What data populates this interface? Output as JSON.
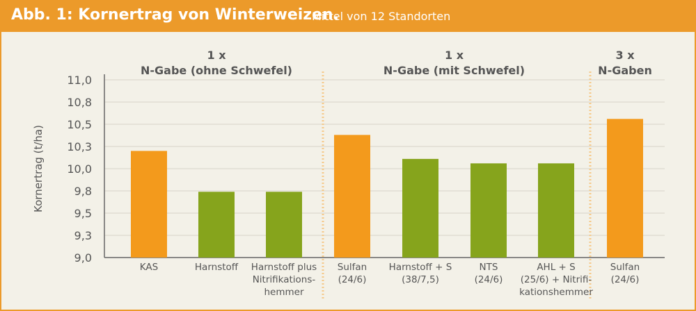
{
  "header": {
    "title": "Abb. 1: Kornertrag von Winterweizen.",
    "subtitle": "Mittel von 12 Standorten"
  },
  "chart_data": {
    "type": "bar",
    "title": "Abb. 1: Kornertrag von Winterweizen.",
    "subtitle": "Mittel von 12 Standorten",
    "ylabel": "Kornertrag (t/ha)",
    "xlabel": "",
    "ylim": [
      9.0,
      11.0
    ],
    "yticks": [
      "9,0",
      "9,3",
      "9,5",
      "9,8",
      "10,0",
      "10,3",
      "10,5",
      "10,8",
      "11,0"
    ],
    "grid": true,
    "colors": {
      "orange": "#f39a1c",
      "green": "#86a41c",
      "text": "#555555",
      "grid": "#d7d3c8",
      "divider": "#f5c98a"
    },
    "categories": [
      [
        "KAS"
      ],
      [
        "Harnstoff"
      ],
      [
        "Harnstoff plus",
        "Nitrifikations-",
        "hemmer"
      ],
      [
        "Sulfan",
        "(24/6)"
      ],
      [
        "Harnstoff + S",
        "(38/7,5)"
      ],
      [
        "NTS",
        "(24/6)"
      ],
      [
        "AHL + S",
        "(25/6) + Nitrifi-",
        "kationshemmer"
      ],
      [
        "Sulfan",
        "(24/6)"
      ]
    ],
    "values": [
      10.2,
      9.74,
      9.74,
      10.38,
      10.11,
      10.06,
      10.06,
      10.56
    ],
    "bar_colors": [
      "orange",
      "green",
      "green",
      "orange",
      "green",
      "green",
      "green",
      "orange"
    ],
    "groups": [
      {
        "lines": [
          "1 x",
          "N-Gabe (ohne Schwefel)"
        ],
        "bars": [
          0,
          1,
          2
        ]
      },
      {
        "lines": [
          "1 x",
          "N-Gabe (mit Schwefel)"
        ],
        "bars": [
          3,
          4,
          5,
          6
        ]
      },
      {
        "lines": [
          "3 x",
          "N-Gaben"
        ],
        "bars": [
          7
        ]
      }
    ]
  }
}
